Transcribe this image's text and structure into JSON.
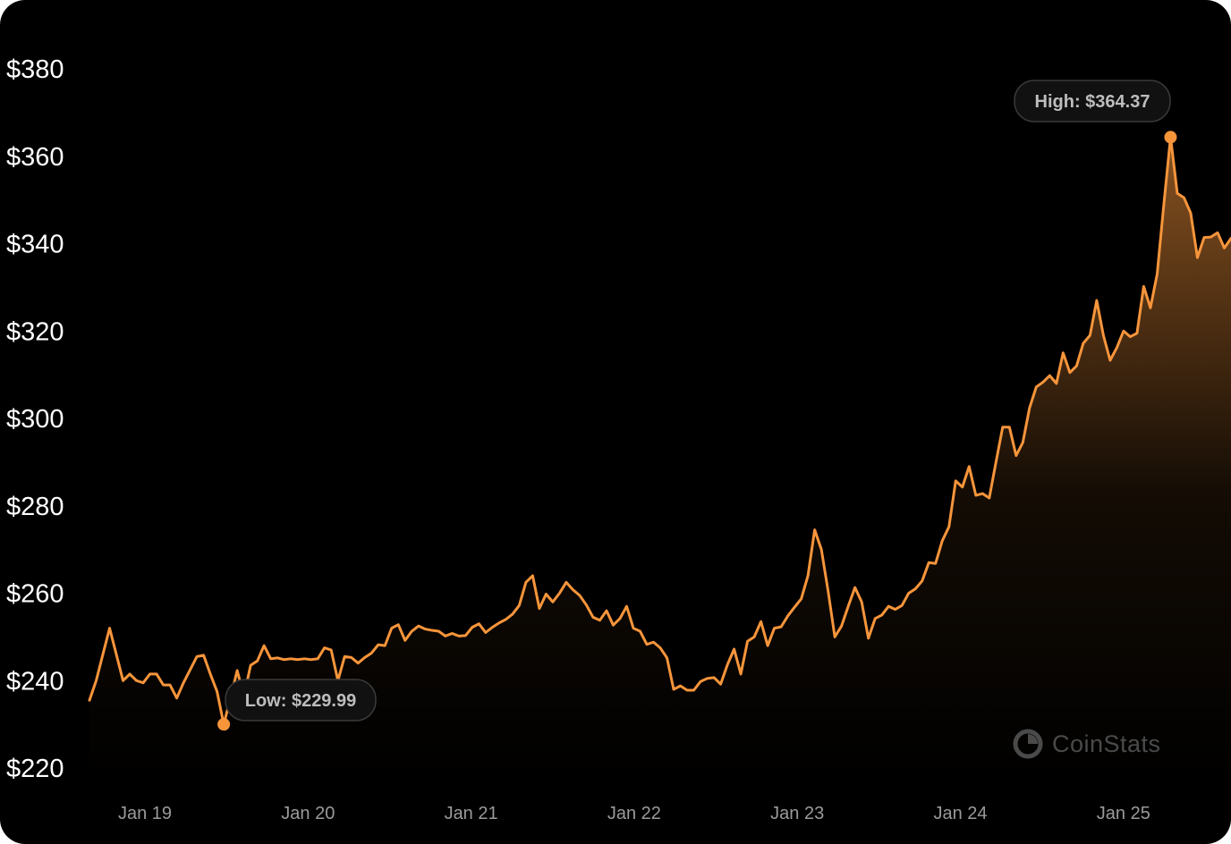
{
  "colors": {
    "background": "#000000",
    "line": "#f7953b",
    "axis_text": "#ffffff",
    "date_text": "#9a9a9a"
  },
  "watermark": {
    "text": "CoinStats",
    "icon": "coinstats-logo-icon"
  },
  "chart_data": {
    "type": "area",
    "title": "",
    "xlabel": "",
    "ylabel": "",
    "ylim": [
      220,
      390
    ],
    "y_ticks": [
      {
        "value": 380,
        "label": "$380"
      },
      {
        "value": 360,
        "label": "$360"
      },
      {
        "value": 340,
        "label": "$340"
      },
      {
        "value": 320,
        "label": "$320"
      },
      {
        "value": 300,
        "label": "$300"
      },
      {
        "value": 280,
        "label": "$280"
      },
      {
        "value": 260,
        "label": "$260"
      },
      {
        "value": 240,
        "label": "$240"
      },
      {
        "value": 220,
        "label": "$220"
      }
    ],
    "x_ticks": [
      "Jan 19",
      "Jan 20",
      "Jan 21",
      "Jan 22",
      "Jan 23",
      "Jan 24",
      "Jan 25"
    ],
    "grid": false,
    "annotations": {
      "low": {
        "label": "Low: $229.99",
        "value": 229.99
      },
      "high": {
        "label": "High: $364.37",
        "value": 364.37
      }
    },
    "series": [
      {
        "values": [
          235.5,
          240,
          246,
          252,
          246,
          240,
          241.5,
          240,
          239.5,
          241.5,
          241.5,
          239,
          239,
          236,
          239.5,
          242.5,
          245.5,
          245.8,
          241.5,
          237.5,
          229.99,
          236,
          242.3,
          236.5,
          243.5,
          244.5,
          248,
          245,
          245.2,
          244.8,
          245,
          244.8,
          245,
          244.8,
          245,
          247.5,
          247,
          240,
          245.5,
          245.3,
          244,
          245.3,
          246.3,
          248.2,
          248,
          252,
          252.8,
          249.2,
          251.3,
          252.5,
          251.8,
          251.5,
          251.3,
          250.2,
          250.8,
          250.2,
          250.3,
          252.2,
          253,
          251,
          252.2,
          253.2,
          254,
          255.2,
          257.2,
          262.5,
          264,
          256.5,
          259.8,
          258,
          260,
          262.5,
          260.8,
          259.5,
          257.3,
          254.5,
          253.8,
          256,
          252.7,
          254.2,
          257,
          252,
          251.3,
          248.3,
          248.8,
          247.5,
          245.2,
          238,
          238.8,
          237.8,
          237.8,
          239.8,
          240.5,
          240.7,
          239.2,
          243.6,
          247.2,
          241.5,
          249,
          250,
          253.5,
          248,
          252,
          252.3,
          254.8,
          256.8,
          258.7,
          264,
          274.5,
          270,
          260.5,
          250,
          252.5,
          257,
          261.3,
          258,
          249.7,
          254.2,
          255,
          257,
          256.3,
          257.2,
          260,
          261,
          262.8,
          267,
          266.8,
          272,
          275.2,
          285.7,
          284.3,
          289,
          282.4,
          282.8,
          281.8,
          290,
          298,
          298,
          291.5,
          294.5,
          302.4,
          307.2,
          308.3,
          309.8,
          308,
          315,
          310.5,
          312,
          317.2,
          319,
          327,
          319,
          313.3,
          316.2,
          320,
          318.7,
          319.5,
          330.2,
          325.3,
          333,
          349,
          364.37,
          351.5,
          350.5,
          347,
          336.8,
          341.4,
          341.5,
          342.5,
          339,
          341.2
        ]
      }
    ]
  }
}
